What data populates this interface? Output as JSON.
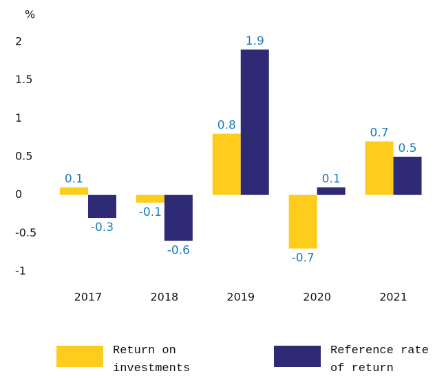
{
  "chart_data": {
    "type": "bar",
    "y_unit": "%",
    "categories": [
      "2017",
      "2018",
      "2019",
      "2020",
      "2021"
    ],
    "series": [
      {
        "name": "Return on investments",
        "color": "#fdcc1c",
        "values": [
          0.1,
          -0.1,
          0.8,
          -0.7,
          0.7
        ]
      },
      {
        "name": "Reference rate of return",
        "color": "#2e2a75",
        "values": [
          -0.3,
          -0.6,
          1.9,
          0.1,
          0.5
        ]
      }
    ],
    "ylim": [
      -1,
      2
    ],
    "yticks": [
      -1,
      -0.5,
      0,
      0.5,
      1,
      1.5,
      2
    ],
    "grid": false
  }
}
